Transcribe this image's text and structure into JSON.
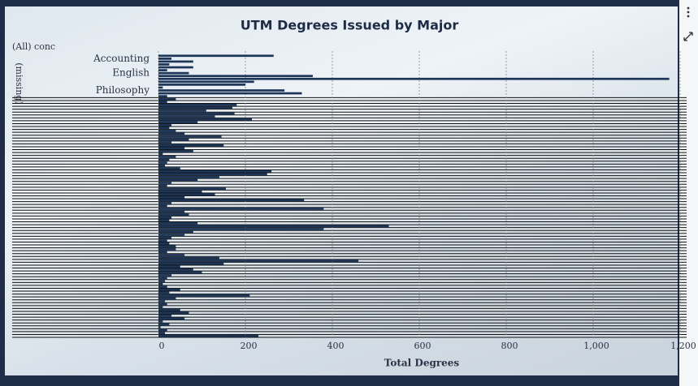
{
  "chart_data": {
    "type": "barh",
    "title": "UTM Degrees Issued by Major",
    "filter_label": "(All) conc",
    "missing_label": "(missing)",
    "x_label": "Total Degrees",
    "color": "#1d3557",
    "grid": true,
    "xlim": [
      0,
      1215
    ],
    "xticks": [
      0,
      200,
      400,
      600,
      800,
      {
        "value": 1000,
        "label": "1,000"
      },
      {
        "value": 1200,
        "label": "1,200"
      }
    ],
    "categories": [
      null,
      "Accounting",
      null,
      null,
      null,
      null,
      "English",
      null,
      null,
      null,
      null,
      null,
      "Philosophy",
      null,
      null,
      null,
      null,
      null,
      null,
      null,
      null,
      null,
      null,
      null,
      null,
      null,
      null,
      null,
      null,
      null,
      null,
      null,
      null,
      null,
      null,
      null,
      null,
      null,
      null,
      null,
      null,
      null,
      null,
      null,
      null,
      null,
      null,
      null,
      null,
      null,
      null,
      null,
      null,
      null,
      null,
      null,
      null,
      null,
      null,
      null,
      null,
      null,
      null,
      null,
      null,
      null,
      null,
      null,
      null,
      null,
      null,
      null,
      null,
      null,
      null,
      null,
      null,
      null,
      null,
      null,
      null,
      null,
      null,
      null,
      null,
      null,
      null,
      null,
      null,
      null,
      null,
      null,
      null,
      null,
      null,
      null,
      null,
      null
    ],
    "values": [
      265,
      30,
      80,
      25,
      80,
      20,
      70,
      355,
      1175,
      220,
      200,
      10,
      290,
      330,
      20,
      40,
      20,
      180,
      170,
      110,
      175,
      130,
      215,
      90,
      30,
      25,
      40,
      60,
      145,
      70,
      30,
      150,
      60,
      80,
      10,
      40,
      25,
      20,
      15,
      50,
      260,
      250,
      140,
      90,
      30,
      20,
      155,
      100,
      130,
      60,
      335,
      30,
      20,
      380,
      60,
      70,
      30,
      25,
      90,
      530,
      380,
      80,
      60,
      30,
      20,
      25,
      40,
      40,
      20,
      60,
      140,
      460,
      150,
      50,
      80,
      100,
      30,
      20,
      15,
      10,
      20,
      50,
      25,
      210,
      40,
      15,
      20,
      10,
      50,
      70,
      30,
      60,
      10,
      25,
      5,
      20,
      15,
      230
    ]
  }
}
